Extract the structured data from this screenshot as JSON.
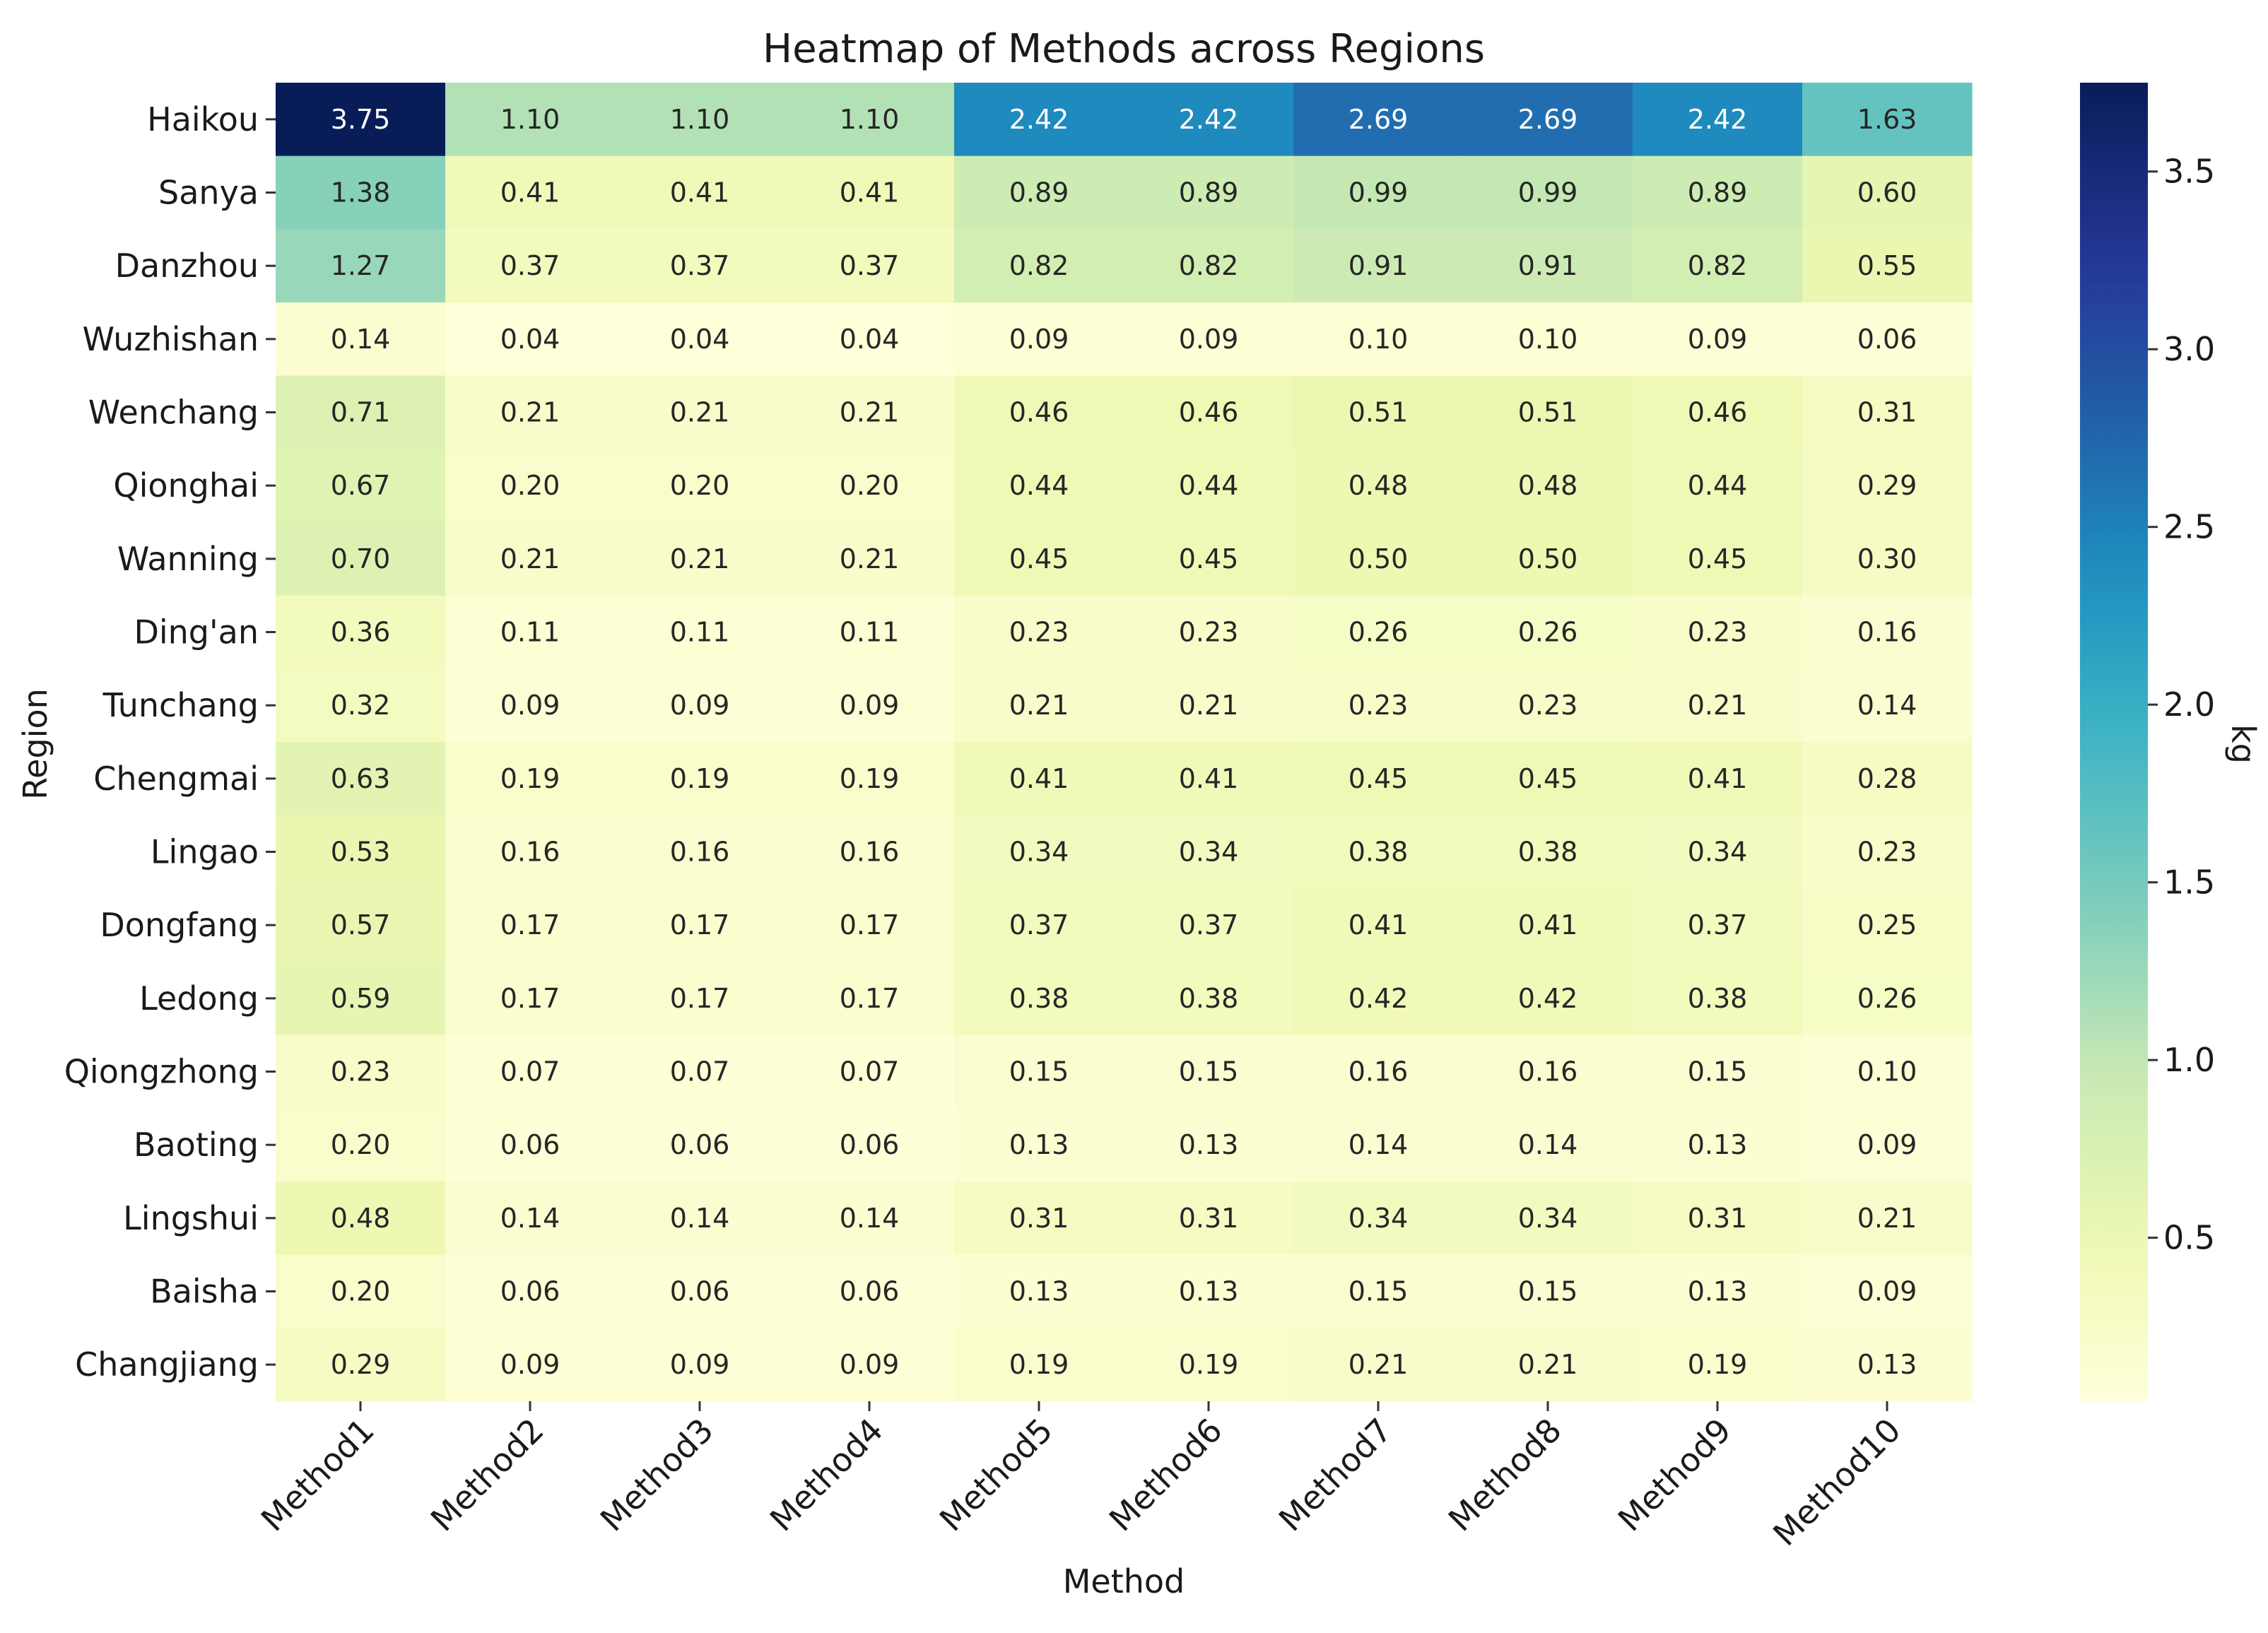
{
  "chart_data": {
    "type": "heatmap",
    "title": "Heatmap of Methods across Regions",
    "xlabel": "Method",
    "ylabel": "Region",
    "colorbar_label": "kg",
    "colormap": "YlGnBu",
    "value_range": [
      0.04,
      3.75
    ],
    "colorbar_ticks": [
      0.5,
      1.0,
      1.5,
      2.0,
      2.5,
      3.0,
      3.5
    ],
    "colorbar_tick_labels": [
      "0.5",
      "1.0",
      "1.5",
      "2.0",
      "2.5",
      "3.0",
      "3.5"
    ],
    "columns": [
      "Method1",
      "Method2",
      "Method3",
      "Method4",
      "Method5",
      "Method6",
      "Method7",
      "Method8",
      "Method9",
      "Method10"
    ],
    "rows": [
      "Haikou",
      "Sanya",
      "Danzhou",
      "Wuzhishan",
      "Wenchang",
      "Qionghai",
      "Wanning",
      "Ding'an",
      "Tunchang",
      "Chengmai",
      "Lingao",
      "Dongfang",
      "Ledong",
      "Qiongzhong",
      "Baoting",
      "Lingshui",
      "Baisha",
      "Changjiang"
    ],
    "values": [
      [
        3.75,
        1.1,
        1.1,
        1.1,
        2.42,
        2.42,
        2.69,
        2.69,
        2.42,
        1.63
      ],
      [
        1.38,
        0.41,
        0.41,
        0.41,
        0.89,
        0.89,
        0.99,
        0.99,
        0.89,
        0.6
      ],
      [
        1.27,
        0.37,
        0.37,
        0.37,
        0.82,
        0.82,
        0.91,
        0.91,
        0.82,
        0.55
      ],
      [
        0.14,
        0.04,
        0.04,
        0.04,
        0.09,
        0.09,
        0.1,
        0.1,
        0.09,
        0.06
      ],
      [
        0.71,
        0.21,
        0.21,
        0.21,
        0.46,
        0.46,
        0.51,
        0.51,
        0.46,
        0.31
      ],
      [
        0.67,
        0.2,
        0.2,
        0.2,
        0.44,
        0.44,
        0.48,
        0.48,
        0.44,
        0.29
      ],
      [
        0.7,
        0.21,
        0.21,
        0.21,
        0.45,
        0.45,
        0.5,
        0.5,
        0.45,
        0.3
      ],
      [
        0.36,
        0.11,
        0.11,
        0.11,
        0.23,
        0.23,
        0.26,
        0.26,
        0.23,
        0.16
      ],
      [
        0.32,
        0.09,
        0.09,
        0.09,
        0.21,
        0.21,
        0.23,
        0.23,
        0.21,
        0.14
      ],
      [
        0.63,
        0.19,
        0.19,
        0.19,
        0.41,
        0.41,
        0.45,
        0.45,
        0.41,
        0.28
      ],
      [
        0.53,
        0.16,
        0.16,
        0.16,
        0.34,
        0.34,
        0.38,
        0.38,
        0.34,
        0.23
      ],
      [
        0.57,
        0.17,
        0.17,
        0.17,
        0.37,
        0.37,
        0.41,
        0.41,
        0.37,
        0.25
      ],
      [
        0.59,
        0.17,
        0.17,
        0.17,
        0.38,
        0.38,
        0.42,
        0.42,
        0.38,
        0.26
      ],
      [
        0.23,
        0.07,
        0.07,
        0.07,
        0.15,
        0.15,
        0.16,
        0.16,
        0.15,
        0.1
      ],
      [
        0.2,
        0.06,
        0.06,
        0.06,
        0.13,
        0.13,
        0.14,
        0.14,
        0.13,
        0.09
      ],
      [
        0.48,
        0.14,
        0.14,
        0.14,
        0.31,
        0.31,
        0.34,
        0.34,
        0.31,
        0.21
      ],
      [
        0.2,
        0.06,
        0.06,
        0.06,
        0.13,
        0.13,
        0.15,
        0.15,
        0.13,
        0.09
      ],
      [
        0.29,
        0.09,
        0.09,
        0.09,
        0.19,
        0.19,
        0.21,
        0.21,
        0.19,
        0.13
      ]
    ],
    "cell_labels": [
      [
        "3.75",
        "1.10",
        "1.10",
        "1.10",
        "2.42",
        "2.42",
        "2.69",
        "2.69",
        "2.42",
        "1.63"
      ],
      [
        "1.38",
        "0.41",
        "0.41",
        "0.41",
        "0.89",
        "0.89",
        "0.99",
        "0.99",
        "0.89",
        "0.60"
      ],
      [
        "1.27",
        "0.37",
        "0.37",
        "0.37",
        "0.82",
        "0.82",
        "0.91",
        "0.91",
        "0.82",
        "0.55"
      ],
      [
        "0.14",
        "0.04",
        "0.04",
        "0.04",
        "0.09",
        "0.09",
        "0.10",
        "0.10",
        "0.09",
        "0.06"
      ],
      [
        "0.71",
        "0.21",
        "0.21",
        "0.21",
        "0.46",
        "0.46",
        "0.51",
        "0.51",
        "0.46",
        "0.31"
      ],
      [
        "0.67",
        "0.20",
        "0.20",
        "0.20",
        "0.44",
        "0.44",
        "0.48",
        "0.48",
        "0.44",
        "0.29"
      ],
      [
        "0.70",
        "0.21",
        "0.21",
        "0.21",
        "0.45",
        "0.45",
        "0.50",
        "0.50",
        "0.45",
        "0.30"
      ],
      [
        "0.36",
        "0.11",
        "0.11",
        "0.11",
        "0.23",
        "0.23",
        "0.26",
        "0.26",
        "0.23",
        "0.16"
      ],
      [
        "0.32",
        "0.09",
        "0.09",
        "0.09",
        "0.21",
        "0.21",
        "0.23",
        "0.23",
        "0.21",
        "0.14"
      ],
      [
        "0.63",
        "0.19",
        "0.19",
        "0.19",
        "0.41",
        "0.41",
        "0.45",
        "0.45",
        "0.41",
        "0.28"
      ],
      [
        "0.53",
        "0.16",
        "0.16",
        "0.16",
        "0.34",
        "0.34",
        "0.38",
        "0.38",
        "0.34",
        "0.23"
      ],
      [
        "0.57",
        "0.17",
        "0.17",
        "0.17",
        "0.37",
        "0.37",
        "0.41",
        "0.41",
        "0.37",
        "0.25"
      ],
      [
        "0.59",
        "0.17",
        "0.17",
        "0.17",
        "0.38",
        "0.38",
        "0.42",
        "0.42",
        "0.38",
        "0.26"
      ],
      [
        "0.23",
        "0.07",
        "0.07",
        "0.07",
        "0.15",
        "0.15",
        "0.16",
        "0.16",
        "0.15",
        "0.10"
      ],
      [
        "0.20",
        "0.06",
        "0.06",
        "0.06",
        "0.13",
        "0.13",
        "0.14",
        "0.14",
        "0.13",
        "0.09"
      ],
      [
        "0.48",
        "0.14",
        "0.14",
        "0.14",
        "0.31",
        "0.31",
        "0.34",
        "0.34",
        "0.31",
        "0.21"
      ],
      [
        "0.20",
        "0.06",
        "0.06",
        "0.06",
        "0.13",
        "0.13",
        "0.15",
        "0.15",
        "0.13",
        "0.09"
      ],
      [
        "0.29",
        "0.09",
        "0.09",
        "0.09",
        "0.19",
        "0.19",
        "0.21",
        "0.21",
        "0.19",
        "0.13"
      ]
    ]
  }
}
